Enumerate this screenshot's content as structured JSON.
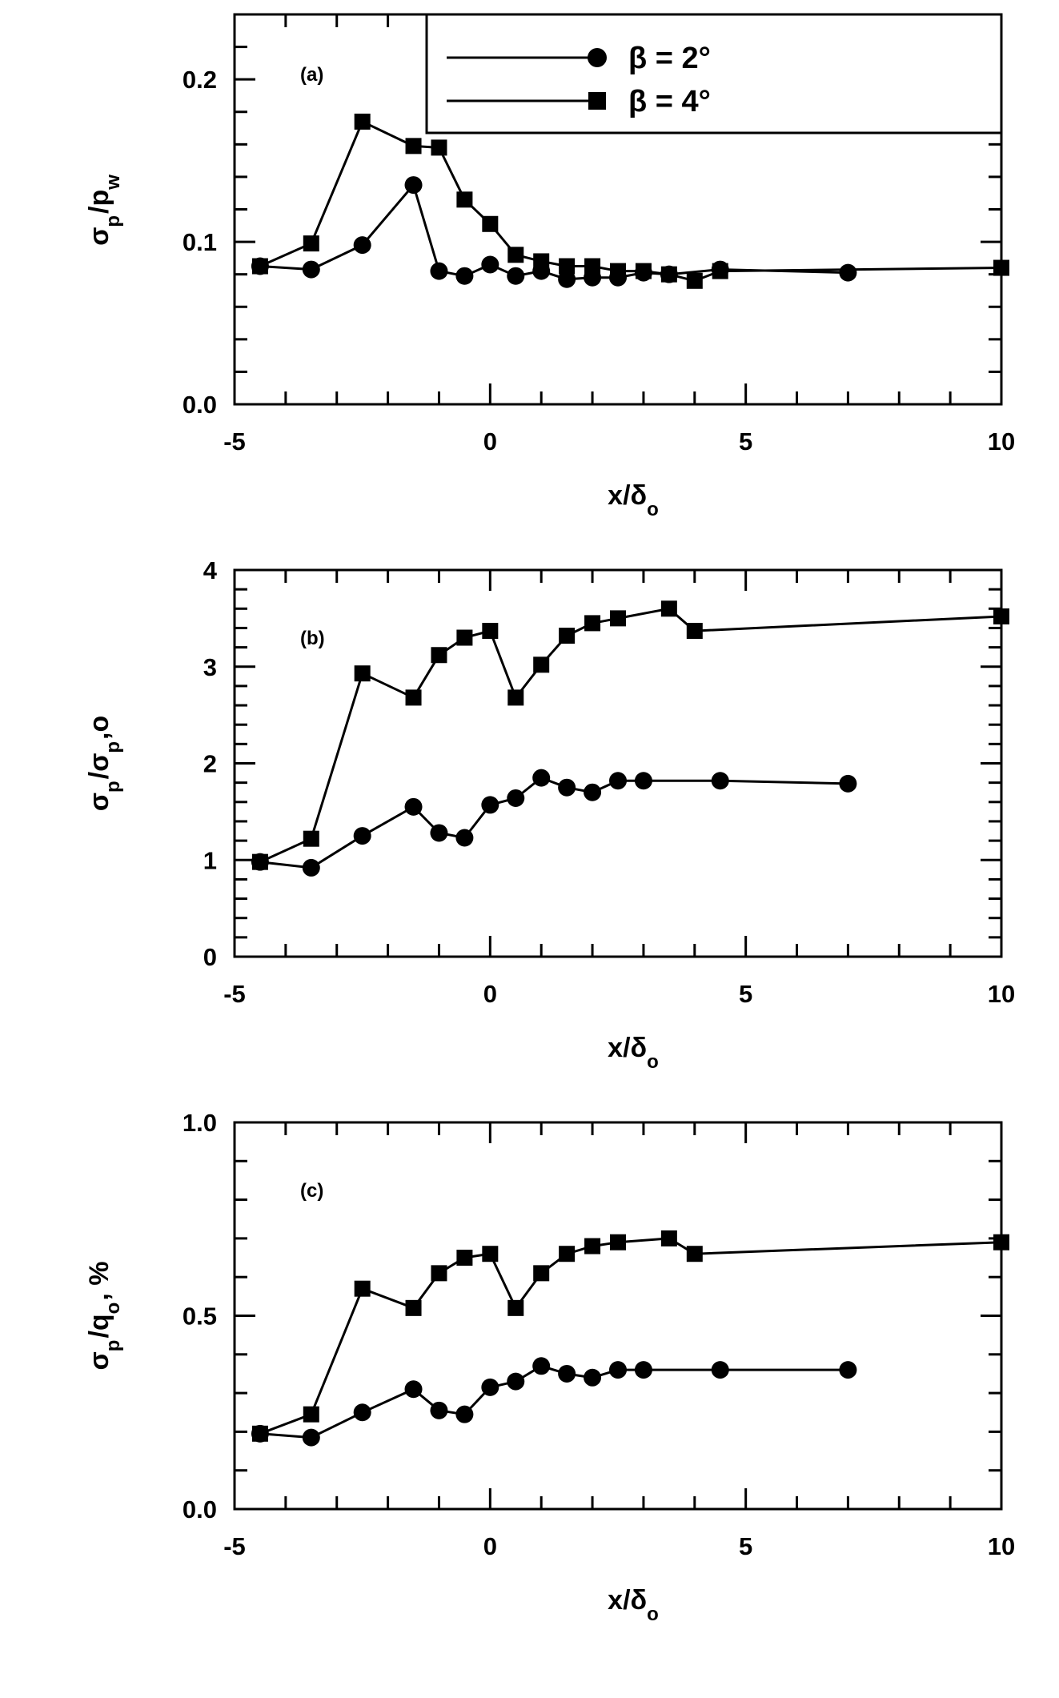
{
  "legend": [
    {
      "marker": "circle",
      "label": "β = 2°"
    },
    {
      "marker": "square",
      "label": "β = 4°"
    }
  ],
  "chart_data": [
    {
      "type": "line",
      "panel_label": "(a)",
      "xlabel": "x/δ_o",
      "ylabel": "σ_p/p_w",
      "xlim": [
        -5,
        10
      ],
      "ylim": [
        0,
        0.24
      ],
      "xticks": [
        "-5",
        "0",
        "5",
        "10"
      ],
      "xtick_values": [
        -5,
        0,
        5,
        10
      ],
      "yticks": [
        "0.0",
        "0.1",
        "0.2"
      ],
      "ytick_values": [
        0,
        0.1,
        0.2
      ],
      "series": [
        {
          "name": "β = 2°",
          "marker": "circle",
          "x": [
            -4.5,
            -3.5,
            -2.5,
            -1.5,
            -1.0,
            -0.5,
            0.0,
            0.5,
            1.0,
            1.5,
            2.0,
            2.5,
            3.0,
            3.5,
            4.5,
            7.0
          ],
          "y": [
            0.085,
            0.083,
            0.098,
            0.135,
            0.082,
            0.079,
            0.086,
            0.079,
            0.082,
            0.077,
            0.078,
            0.078,
            0.081,
            0.08,
            0.083,
            0.081
          ]
        },
        {
          "name": "β = 4°",
          "marker": "square",
          "x": [
            -4.5,
            -3.5,
            -2.5,
            -1.5,
            -1.0,
            -0.5,
            0.0,
            0.5,
            1.0,
            1.5,
            2.0,
            2.5,
            3.0,
            3.5,
            4.0,
            4.5,
            10.0
          ],
          "y": [
            0.085,
            0.099,
            0.174,
            0.159,
            0.158,
            0.126,
            0.111,
            0.092,
            0.088,
            0.085,
            0.085,
            0.082,
            0.082,
            0.08,
            0.076,
            0.082,
            0.084
          ]
        }
      ]
    },
    {
      "type": "line",
      "panel_label": "(b)",
      "xlabel": "x/δ_o",
      "ylabel": "σ_p/σ_p,o",
      "xlim": [
        -5,
        10
      ],
      "ylim": [
        0,
        4
      ],
      "xticks": [
        "-5",
        "0",
        "5",
        "10"
      ],
      "xtick_values": [
        -5,
        0,
        5,
        10
      ],
      "yticks": [
        "0",
        "1",
        "2",
        "3",
        "4"
      ],
      "ytick_values": [
        0,
        1,
        2,
        3,
        4
      ],
      "series": [
        {
          "name": "β = 2°",
          "marker": "circle",
          "x": [
            -4.5,
            -3.5,
            -2.5,
            -1.5,
            -1.0,
            -0.5,
            0.0,
            0.5,
            1.0,
            1.5,
            2.0,
            2.5,
            3.0,
            4.5,
            7.0
          ],
          "y": [
            0.98,
            0.92,
            1.25,
            1.55,
            1.28,
            1.23,
            1.57,
            1.64,
            1.85,
            1.75,
            1.7,
            1.82,
            1.82,
            1.82,
            1.79
          ]
        },
        {
          "name": "β = 4°",
          "marker": "square",
          "x": [
            -4.5,
            -3.5,
            -2.5,
            -1.5,
            -1.0,
            -0.5,
            0.0,
            0.5,
            1.0,
            1.5,
            2.0,
            2.5,
            3.5,
            4.0,
            10.0
          ],
          "y": [
            0.98,
            1.22,
            2.93,
            2.68,
            3.12,
            3.3,
            3.37,
            2.68,
            3.02,
            3.32,
            3.45,
            3.5,
            3.6,
            3.37,
            3.52
          ]
        }
      ]
    },
    {
      "type": "line",
      "panel_label": "(c)",
      "xlabel": "x/δ_o",
      "ylabel": "σ_p/q_o, %",
      "xlim": [
        -5,
        10
      ],
      "ylim": [
        0,
        1.0
      ],
      "xticks": [
        "-5",
        "0",
        "5",
        "10"
      ],
      "xtick_values": [
        -5,
        0,
        5,
        10
      ],
      "yticks": [
        "0.0",
        "0.5",
        "1.0"
      ],
      "ytick_values": [
        0,
        0.5,
        1.0
      ],
      "series": [
        {
          "name": "β = 2°",
          "marker": "circle",
          "x": [
            -4.5,
            -3.5,
            -2.5,
            -1.5,
            -1.0,
            -0.5,
            0.0,
            0.5,
            1.0,
            1.5,
            2.0,
            2.5,
            3.0,
            4.5,
            7.0
          ],
          "y": [
            0.195,
            0.185,
            0.25,
            0.31,
            0.255,
            0.245,
            0.315,
            0.33,
            0.37,
            0.35,
            0.34,
            0.36,
            0.36,
            0.36,
            0.36
          ]
        },
        {
          "name": "β = 4°",
          "marker": "square",
          "x": [
            -4.5,
            -3.5,
            -2.5,
            -1.5,
            -1.0,
            -0.5,
            0.0,
            0.5,
            1.0,
            1.5,
            2.0,
            2.5,
            3.5,
            4.0,
            10.0
          ],
          "y": [
            0.195,
            0.245,
            0.57,
            0.52,
            0.61,
            0.65,
            0.66,
            0.52,
            0.61,
            0.66,
            0.68,
            0.69,
            0.7,
            0.66,
            0.69
          ]
        }
      ]
    }
  ]
}
